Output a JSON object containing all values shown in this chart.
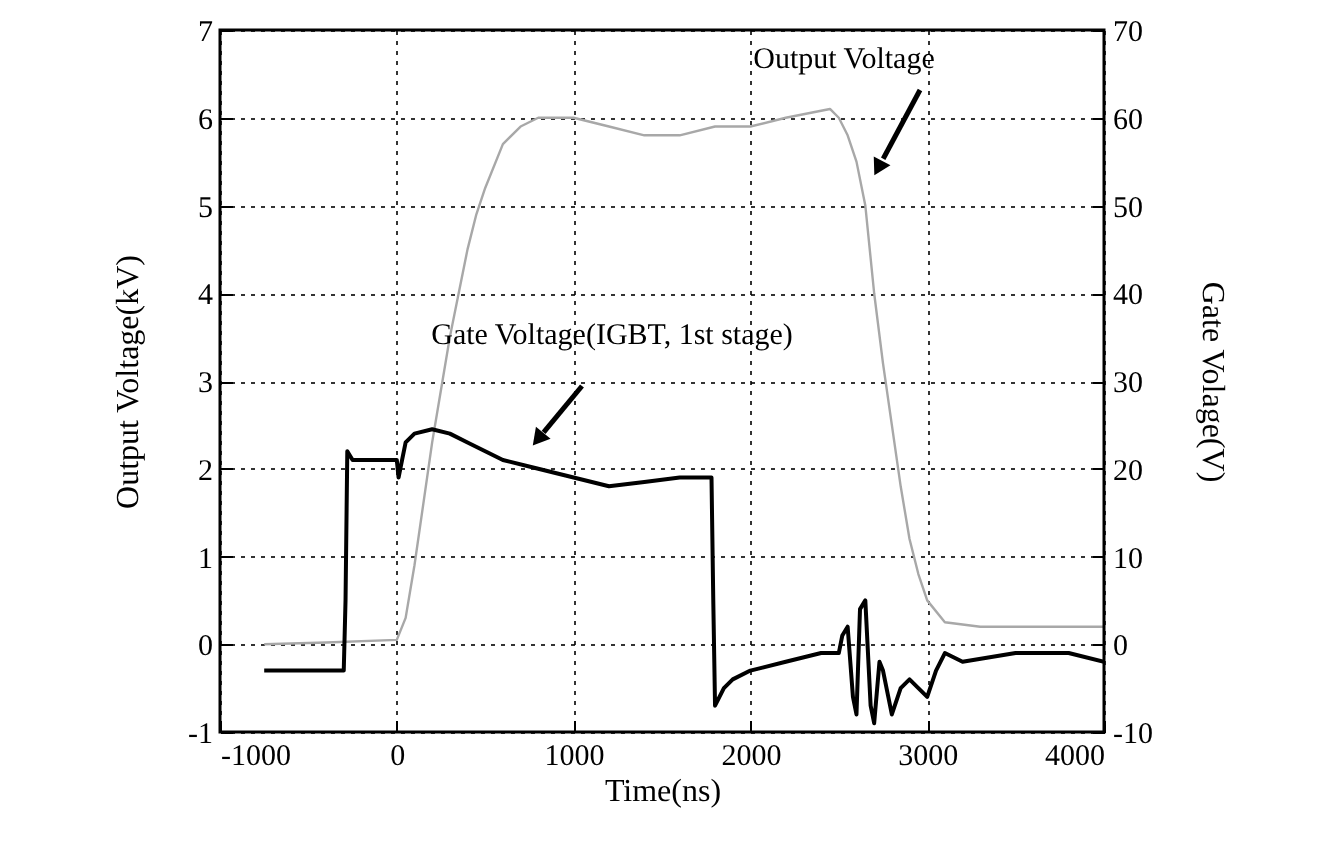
{
  "chart_data": {
    "type": "line",
    "xlabel": "Time(ns)",
    "ylabel": "Output Voltage(kV)",
    "y2label": "Gate Volage(V)",
    "xlim": [
      -1000,
      4000
    ],
    "xticks": [
      -1000,
      0,
      1000,
      2000,
      3000,
      4000
    ],
    "ylim": [
      -1,
      7
    ],
    "yticks": [
      -1,
      0,
      1,
      2,
      3,
      4,
      5,
      6,
      7
    ],
    "y2lim": [
      -10,
      70
    ],
    "y2ticks": [
      -10,
      0,
      10,
      20,
      30,
      40,
      50,
      60,
      70
    ],
    "grid": true,
    "series": [
      {
        "color": "#a8a8a8",
        "x": [
          -750,
          -400,
          0,
          50,
          100,
          150,
          200,
          250,
          300,
          350,
          400,
          450,
          500,
          600,
          700,
          800,
          1000,
          1200,
          1400,
          1600,
          1800,
          2000,
          2200,
          2450,
          2500,
          2550,
          2600,
          2650,
          2700,
          2750,
          2800,
          2850,
          2900,
          2950,
          3000,
          3100,
          3300,
          3500,
          3800,
          4000
        ],
        "values": [
          0,
          0.02,
          0.05,
          0.3,
          0.9,
          1.6,
          2.3,
          2.9,
          3.5,
          4.0,
          4.5,
          4.9,
          5.2,
          5.7,
          5.9,
          6.0,
          6.0,
          5.9,
          5.8,
          5.8,
          5.9,
          5.9,
          6.0,
          6.1,
          6.0,
          5.8,
          5.5,
          5.0,
          4.0,
          3.2,
          2.5,
          1.8,
          1.2,
          0.8,
          0.5,
          0.25,
          0.2,
          0.2,
          0.2,
          0.2
        ]
      },
      {
        "color": "#000000",
        "axis": "y2",
        "x": [
          -750,
          -500,
          -300,
          -290,
          -280,
          -250,
          -200,
          -100,
          0,
          10,
          30,
          50,
          100,
          200,
          300,
          400,
          600,
          800,
          1000,
          1200,
          1400,
          1600,
          1780,
          1790,
          1800,
          1850,
          1900,
          2000,
          2200,
          2400,
          2500,
          2520,
          2550,
          2580,
          2600,
          2620,
          2650,
          2680,
          2700,
          2730,
          2750,
          2780,
          2800,
          2850,
          2900,
          2950,
          3000,
          3050,
          3100,
          3200,
          3500,
          3800,
          4000
        ],
        "values": [
          -3,
          -3,
          -3,
          5,
          22,
          21,
          21,
          21,
          21,
          19,
          21,
          23,
          24,
          24.5,
          24,
          23,
          21,
          20,
          19,
          18,
          18.5,
          19,
          19,
          5,
          -7,
          -5,
          -4,
          -3,
          -2,
          -1,
          -1,
          1,
          2,
          -6,
          -8,
          4,
          5,
          -7,
          -9,
          -2,
          -3,
          -6,
          -8,
          -5,
          -4,
          -5,
          -6,
          -3,
          -1,
          -2,
          -1,
          -1,
          -2
        ]
      }
    ],
    "annotations": [
      "Output Voltage",
      "Gate Voltage(IGBT, 1st stage)"
    ]
  }
}
